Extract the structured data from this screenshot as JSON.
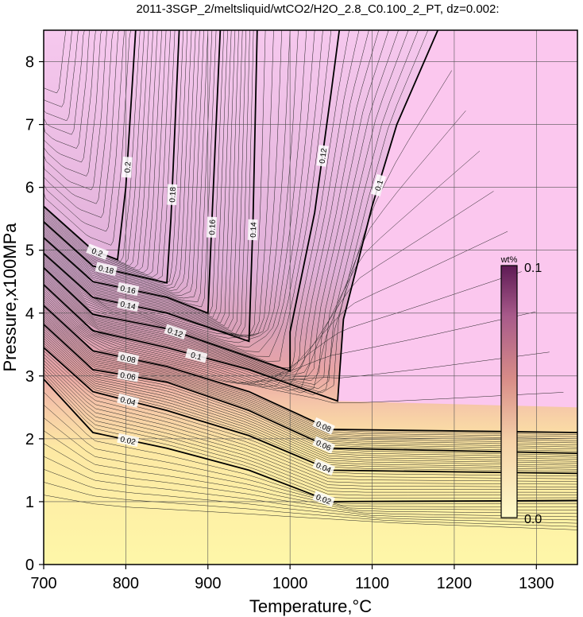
{
  "chart_data": {
    "type": "contour",
    "title": "2011-3SGP_2/meltsliquid/wtCO2/H2O_2.8_C0.100_2_PT, dz=0.002:",
    "xlabel": "Temperature,°C",
    "ylabel": "Pressure,x100MPa",
    "xlim": [
      700,
      1350
    ],
    "ylim": [
      0,
      8.5
    ],
    "x_ticks": [
      700,
      800,
      900,
      1000,
      1100,
      1200,
      1300
    ],
    "y_ticks": [
      0,
      1,
      2,
      3,
      4,
      5,
      6,
      7,
      8
    ],
    "x_tick_labels": [
      "700",
      "800",
      "900",
      "1000",
      "1100",
      "1200",
      "1300"
    ],
    "y_tick_labels": [
      "0",
      "1",
      "2",
      "3",
      "4",
      "5",
      "6",
      "7",
      "8"
    ],
    "grid": true,
    "contour_interval": 0.002,
    "major_interval": 0.02,
    "colorbar": {
      "unit": "wt%",
      "max_label": "0.1",
      "min_label": "0.0",
      "range": [
        0.0,
        0.1
      ],
      "colors": [
        "#fefac8",
        "#f5c6a8",
        "#d88c88",
        "#a85a8a",
        "#5e1a55"
      ]
    },
    "saturated_color": "#fbc7ee",
    "contours": [
      {
        "value": 0.02,
        "label": "0.02",
        "points": [
          [
            700,
            2.95
          ],
          [
            760,
            2.1
          ],
          [
            850,
            1.85
          ],
          [
            950,
            1.5
          ],
          [
            1050,
            1.0
          ],
          [
            1350,
            1.02
          ]
        ]
      },
      {
        "value": 0.04,
        "label": "0.04",
        "points": [
          [
            700,
            3.45
          ],
          [
            760,
            2.75
          ],
          [
            850,
            2.45
          ],
          [
            950,
            2.05
          ],
          [
            1050,
            1.5
          ],
          [
            1350,
            1.45
          ]
        ]
      },
      {
        "value": 0.06,
        "label": "0.06",
        "points": [
          [
            700,
            3.82
          ],
          [
            760,
            3.1
          ],
          [
            850,
            2.9
          ],
          [
            950,
            2.45
          ],
          [
            1050,
            1.85
          ],
          [
            1350,
            1.77
          ]
        ]
      },
      {
        "value": 0.08,
        "label": "0.08",
        "points": [
          [
            700,
            4.12
          ],
          [
            760,
            3.4
          ],
          [
            850,
            3.15
          ],
          [
            950,
            2.75
          ],
          [
            1050,
            2.15
          ],
          [
            1350,
            2.1
          ]
        ]
      },
      {
        "value": 0.1,
        "label": "0.1",
        "points": [
          [
            700,
            4.45
          ],
          [
            760,
            3.72
          ],
          [
            850,
            3.45
          ],
          [
            950,
            3.1
          ],
          [
            1058,
            2.6
          ],
          [
            1065,
            3.9
          ],
          [
            1100,
            5.7
          ],
          [
            1130,
            7.0
          ],
          [
            1180,
            8.5
          ]
        ]
      },
      {
        "value": 0.12,
        "label": "0.12",
        "points": [
          [
            700,
            4.72
          ],
          [
            760,
            3.98
          ],
          [
            850,
            3.75
          ],
          [
            1000,
            3.08
          ],
          [
            1000,
            3.7
          ],
          [
            1030,
            5.6
          ],
          [
            1050,
            7.5
          ],
          [
            1060,
            8.5
          ]
        ]
      },
      {
        "value": 0.14,
        "label": "0.14",
        "points": [
          [
            700,
            4.95
          ],
          [
            760,
            4.25
          ],
          [
            850,
            4.0
          ],
          [
            950,
            3.55
          ],
          [
            955,
            5.5
          ],
          [
            960,
            8.5
          ]
        ]
      },
      {
        "value": 0.16,
        "label": "0.16",
        "points": [
          [
            700,
            5.2
          ],
          [
            760,
            4.5
          ],
          [
            850,
            4.25
          ],
          [
            900,
            4.0
          ],
          [
            905,
            5.5
          ],
          [
            915,
            8.5
          ]
        ]
      },
      {
        "value": 0.18,
        "label": "0.18",
        "points": [
          [
            700,
            5.45
          ],
          [
            760,
            4.75
          ],
          [
            850,
            4.48
          ],
          [
            855,
            5.5
          ],
          [
            865,
            8.5
          ]
        ]
      },
      {
        "value": 0.2,
        "label": "0.2",
        "points": [
          [
            700,
            5.7
          ],
          [
            760,
            5.0
          ],
          [
            790,
            4.85
          ],
          [
            800,
            6.0
          ],
          [
            812,
            8.5
          ]
        ]
      }
    ]
  }
}
